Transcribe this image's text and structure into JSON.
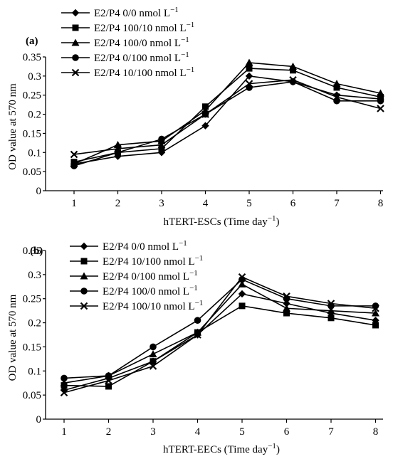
{
  "chart_data": [
    {
      "type": "line",
      "panel_label": "(a)",
      "xlabel": "hTERT-ESCs (Time day",
      "xlabel_sup": "−1",
      "xlabel_tail": ")",
      "ylabel": "OD value at 570 nm",
      "categories": [
        "1",
        "2",
        "3",
        "4",
        "5",
        "6",
        "7",
        "8"
      ],
      "yticks": [
        "0",
        "0.05",
        "0.1",
        "0.15",
        "0.2",
        "0.25",
        "0.3",
        "0.35"
      ],
      "ylim": [
        0,
        0.35
      ],
      "legend_position": "top-left",
      "series": [
        {
          "name": "E2/P4 0/0 nmol L",
          "name_sup": "−1",
          "marker": "diamond",
          "values": [
            0.07,
            0.09,
            0.1,
            0.17,
            0.3,
            0.285,
            0.25,
            0.24
          ]
        },
        {
          "name": "E2/P4 100/10 nmol L",
          "name_sup": "−1",
          "marker": "square",
          "values": [
            0.075,
            0.1,
            0.11,
            0.22,
            0.32,
            0.315,
            0.27,
            0.245
          ]
        },
        {
          "name": "E2/P4 100/0 nmol L",
          "name_sup": "−1",
          "marker": "triangle",
          "values": [
            0.07,
            0.12,
            0.13,
            0.21,
            0.335,
            0.325,
            0.28,
            0.255
          ]
        },
        {
          "name": "E2/P4 0/100 nmol L",
          "name_sup": "−1",
          "marker": "circle",
          "values": [
            0.065,
            0.1,
            0.135,
            0.2,
            0.27,
            0.285,
            0.235,
            0.235
          ]
        },
        {
          "name": "E2/P4 10/100 nmol L",
          "name_sup": "−1",
          "marker": "x",
          "values": [
            0.095,
            0.11,
            0.12,
            0.2,
            0.28,
            0.29,
            0.245,
            0.215
          ]
        }
      ]
    },
    {
      "type": "line",
      "panel_label": "(b)",
      "xlabel": "hTERT-EECs (Time day",
      "xlabel_sup": "−1",
      "xlabel_tail": ")",
      "ylabel": "OD value at 570 nm",
      "categories": [
        "1",
        "2",
        "3",
        "4",
        "5",
        "6",
        "7",
        "8"
      ],
      "yticks": [
        "0",
        "0.05",
        "0.1",
        "0.15",
        "0.2",
        "0.25",
        "0.3",
        "0.35"
      ],
      "ylim": [
        0,
        0.35
      ],
      "legend_position": "top-left",
      "series": [
        {
          "name": "E2/P4 0/0 nmol L",
          "name_sup": "−1",
          "marker": "diamond",
          "values": [
            0.06,
            0.085,
            0.12,
            0.175,
            0.26,
            0.24,
            0.22,
            0.205
          ]
        },
        {
          "name": "E2/P4 10/100 nmol L",
          "name_sup": "−1",
          "marker": "square",
          "values": [
            0.07,
            0.068,
            0.12,
            0.18,
            0.235,
            0.22,
            0.21,
            0.195
          ]
        },
        {
          "name": "E2/P4 0/100 nmol L",
          "name_sup": "−1",
          "marker": "triangle",
          "values": [
            0.075,
            0.09,
            0.135,
            0.18,
            0.28,
            0.23,
            0.225,
            0.22
          ]
        },
        {
          "name": "E2/P4 100/0 nmol L",
          "name_sup": "−1",
          "marker": "circle",
          "values": [
            0.085,
            0.09,
            0.15,
            0.205,
            0.29,
            0.25,
            0.235,
            0.235
          ]
        },
        {
          "name": "E2/P4 100/10 nmol L",
          "name_sup": "−1",
          "marker": "x",
          "values": [
            0.055,
            0.08,
            0.11,
            0.175,
            0.295,
            0.255,
            0.24,
            0.23
          ]
        }
      ]
    }
  ]
}
